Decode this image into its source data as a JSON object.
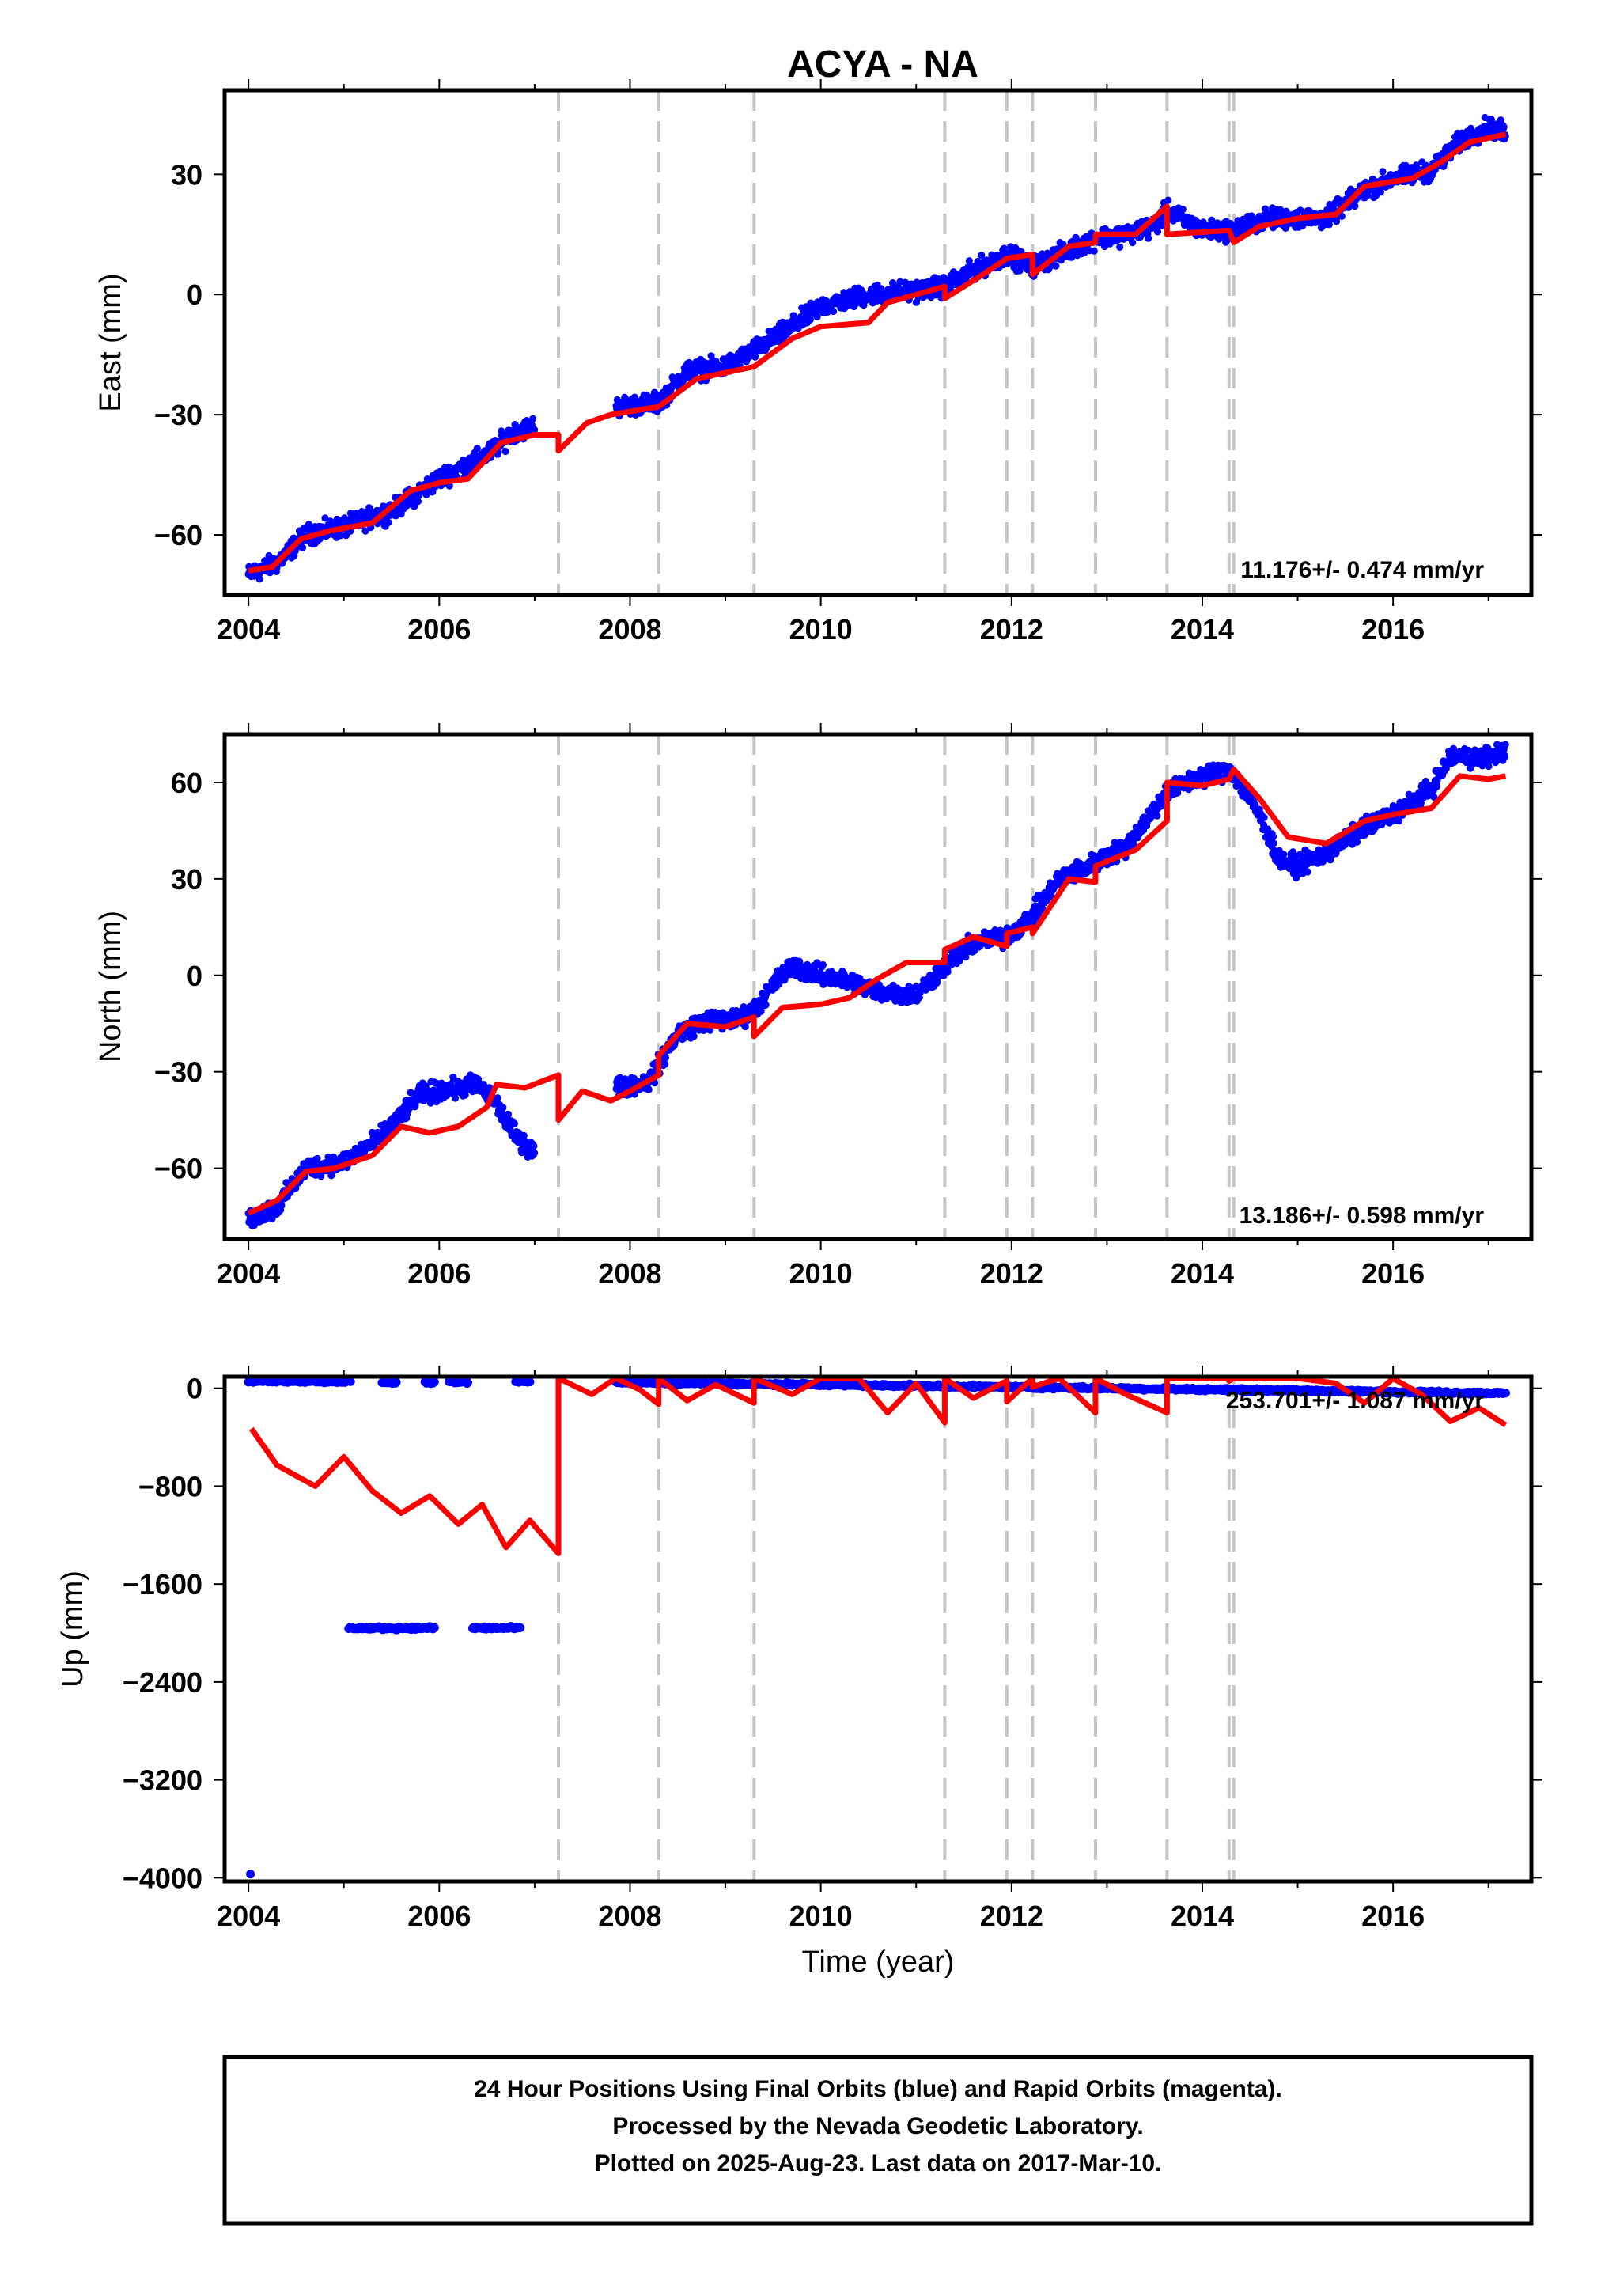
{
  "title": "ACYA - NA",
  "colors": {
    "observations": "#0000ff",
    "model": "#ff0000",
    "event_lines": "#c6c6c6",
    "frame": "#000000"
  },
  "xlabel": "Time (year)",
  "x_ticks": [
    2004,
    2006,
    2008,
    2010,
    2012,
    2014,
    2016
  ],
  "caption_lines": [
    "24 Hour Positions Using Final Orbits (blue) and Rapid Orbits (magenta).",
    "Processed by the Nevada Geodetic Laboratory.",
    "Plotted on 2025-Aug-23. Last data on 2017-Mar-10."
  ],
  "chart_data": [
    {
      "type": "scatter",
      "component": "East",
      "ylabel": "East (mm)",
      "rate_text": "11.176+/- 0.474 mm/yr",
      "xlim": [
        2003.75,
        2017.45
      ],
      "ylim": [
        -75,
        51
      ],
      "y_ticks": [
        30,
        0,
        -30,
        -60
      ],
      "event_lines": [
        2007.25,
        2008.3,
        2009.3,
        2011.3,
        2011.95,
        2012.22,
        2012.88,
        2013.63,
        2014.28,
        2014.33
      ],
      "series": [
        {
          "role": "observations",
          "gaps": [
            [
              2007.0,
              2007.85
            ]
          ],
          "x": [
            2004.0,
            2004.3,
            2004.6,
            2005.0,
            2005.5,
            2006.0,
            2006.5,
            2006.8,
            2007.0,
            2007.85,
            2008.3,
            2008.6,
            2009.0,
            2009.3,
            2009.7,
            2010.0,
            2010.5,
            2011.0,
            2011.3,
            2011.6,
            2011.95,
            2012.22,
            2012.6,
            2012.88,
            2013.2,
            2013.5,
            2013.63,
            2014.0,
            2014.3,
            2014.7,
            2015.0,
            2015.3,
            2015.7,
            2016.0,
            2016.4,
            2016.7,
            2017.0,
            2017.18
          ],
          "y": [
            -70,
            -67,
            -60,
            -58,
            -54,
            -46,
            -40,
            -34,
            -33,
            -28,
            -27,
            -19,
            -18,
            -14,
            -8,
            -3,
            0,
            1,
            2,
            6,
            10,
            7,
            11,
            14,
            15,
            17,
            21,
            16,
            16,
            19,
            19,
            19,
            26,
            29,
            31,
            38,
            42,
            40
          ]
        },
        {
          "role": "model",
          "x": [
            2004.0,
            2004.25,
            2004.55,
            2004.85,
            2005.3,
            2005.7,
            2006.0,
            2006.3,
            2006.65,
            2007.0,
            2007.25,
            2007.25,
            2007.55,
            2007.8,
            2008.3,
            2008.3,
            2008.7,
            2009.3,
            2009.3,
            2009.7,
            2010.0,
            2010.5,
            2010.7,
            2011.3,
            2011.3,
            2011.7,
            2011.95,
            2011.95,
            2012.22,
            2012.22,
            2012.6,
            2012.88,
            2012.88,
            2013.3,
            2013.63,
            2013.63,
            2014.28,
            2014.28,
            2014.33,
            2014.6,
            2015.0,
            2015.4,
            2015.7,
            2016.2,
            2016.5,
            2016.8,
            2017.18
          ],
          "y": [
            -69,
            -68,
            -61,
            -59,
            -57,
            -49,
            -47,
            -46,
            -37,
            -35,
            -35,
            -39,
            -32,
            -30,
            -28,
            -28,
            -21,
            -18,
            -18,
            -11,
            -8,
            -7,
            -2,
            2,
            -1,
            5,
            9,
            9,
            10,
            5,
            12,
            13,
            15,
            15,
            22,
            15,
            16,
            16,
            13,
            17,
            19,
            20,
            27,
            29,
            33,
            38,
            40
          ]
        }
      ]
    },
    {
      "type": "scatter",
      "component": "North",
      "ylabel": "North (mm)",
      "rate_text": "13.186+/- 0.598 mm/yr",
      "xlim": [
        2003.75,
        2017.45
      ],
      "ylim": [
        -82,
        75
      ],
      "y_ticks": [
        60,
        30,
        0,
        -30,
        -60
      ],
      "event_lines": [
        2007.25,
        2008.3,
        2009.3,
        2011.3,
        2011.95,
        2012.22,
        2012.88,
        2013.63,
        2014.28,
        2014.33
      ],
      "series": [
        {
          "role": "observations",
          "gaps": [
            [
              2007.0,
              2007.85
            ]
          ],
          "x": [
            2004.0,
            2004.3,
            2004.6,
            2005.0,
            2005.4,
            2005.8,
            2006.0,
            2006.4,
            2006.6,
            2006.8,
            2007.0,
            2007.85,
            2008.2,
            2008.5,
            2008.8,
            2009.1,
            2009.3,
            2009.5,
            2009.7,
            2010.0,
            2010.3,
            2010.6,
            2011.0,
            2011.3,
            2011.6,
            2011.95,
            2012.2,
            2012.5,
            2012.88,
            2013.2,
            2013.63,
            2014.0,
            2014.3,
            2014.6,
            2014.8,
            2015.0,
            2015.3,
            2015.7,
            2016.0,
            2016.4,
            2016.6,
            2017.0,
            2017.18
          ],
          "y": [
            -76,
            -72,
            -60,
            -58,
            -50,
            -37,
            -36,
            -34,
            -40,
            -50,
            -55,
            -35,
            -33,
            -18,
            -14,
            -14,
            -11,
            -3,
            3,
            0,
            -2,
            -5,
            -6,
            3,
            10,
            12,
            18,
            30,
            35,
            40,
            57,
            62,
            64,
            50,
            36,
            34,
            38,
            46,
            50,
            58,
            68,
            68,
            70
          ]
        },
        {
          "role": "model",
          "x": [
            2004.0,
            2004.3,
            2004.6,
            2004.9,
            2005.3,
            2005.6,
            2005.9,
            2006.2,
            2006.5,
            2006.6,
            2006.9,
            2007.25,
            2007.25,
            2007.5,
            2007.8,
            2008.0,
            2008.3,
            2008.3,
            2008.6,
            2009.0,
            2009.3,
            2009.3,
            2009.6,
            2010.0,
            2010.3,
            2010.6,
            2010.9,
            2011.3,
            2011.3,
            2011.6,
            2011.95,
            2011.95,
            2012.22,
            2012.22,
            2012.6,
            2012.88,
            2012.88,
            2013.3,
            2013.63,
            2013.63,
            2014.0,
            2014.28,
            2014.28,
            2014.33,
            2014.6,
            2014.9,
            2015.3,
            2015.7,
            2016.0,
            2016.4,
            2016.7,
            2017.0,
            2017.18
          ],
          "y": [
            -74,
            -70,
            -61,
            -60,
            -56,
            -47,
            -49,
            -47,
            -41,
            -34,
            -35,
            -31,
            -45,
            -36,
            -39,
            -36,
            -31,
            -25,
            -15,
            -16,
            -13,
            -19,
            -10,
            -9,
            -7,
            -1,
            4,
            4,
            8,
            12,
            9,
            13,
            15,
            13,
            30,
            29,
            34,
            39,
            48,
            60,
            59,
            61,
            61,
            64,
            55,
            43,
            41,
            48,
            50,
            52,
            62,
            61,
            62
          ]
        }
      ]
    },
    {
      "type": "scatter",
      "component": "Up",
      "ylabel": "Up (mm)",
      "rate_text": "253.701+/- 1.087 mm/yr",
      "xlim": [
        2003.75,
        2017.45
      ],
      "ylim": [
        -4030,
        95
      ],
      "y_ticks": [
        0,
        -800,
        -1600,
        -2400,
        -3200,
        -4000
      ],
      "event_lines": [
        2007.25,
        2008.3,
        2009.3,
        2011.3,
        2011.95,
        2012.22,
        2012.88,
        2013.63,
        2014.28,
        2014.33
      ],
      "series": [
        {
          "role": "observations",
          "segments": [
            {
              "x": [
                2004.0,
                2005.07
              ],
              "y": [
                60,
                55
              ]
            },
            {
              "x": [
                2005.4,
                2005.55
              ],
              "y": [
                50,
                50
              ]
            },
            {
              "x": [
                2005.85,
                2005.95
              ],
              "y": [
                50,
                50
              ]
            },
            {
              "x": [
                2006.1,
                2006.3
              ],
              "y": [
                50,
                50
              ]
            },
            {
              "x": [
                2006.8,
                2006.95
              ],
              "y": [
                55,
                55
              ]
            },
            {
              "x": [
                2007.85,
                2017.18
              ],
              "y": [
                50,
                -40
              ]
            },
            {
              "x": [
                2005.05,
                2005.95
              ],
              "y": [
                -1960,
                -1960
              ]
            },
            {
              "x": [
                2006.35,
                2006.85
              ],
              "y": [
                -1960,
                -1960
              ]
            }
          ],
          "outliers": [
            {
              "x": 2004.02,
              "y": -3970
            }
          ]
        },
        {
          "role": "model",
          "x": [
            2004.03,
            2004.3,
            2004.7,
            2005.0,
            2005.3,
            2005.6,
            2005.9,
            2006.2,
            2006.45,
            2006.7,
            2006.95,
            2007.25,
            2007.25,
            2007.6,
            2007.85,
            2008.1,
            2008.3,
            2008.3,
            2008.6,
            2008.9,
            2009.3,
            2009.3,
            2009.7,
            2010.0,
            2010.4,
            2010.7,
            2011.0,
            2011.3,
            2011.3,
            2011.6,
            2011.95,
            2011.95,
            2012.22,
            2012.22,
            2012.5,
            2012.88,
            2012.88,
            2013.2,
            2013.63,
            2013.63,
            2014.0,
            2014.28,
            2014.28,
            2014.33,
            2014.7,
            2015.0,
            2015.4,
            2015.7,
            2016.0,
            2016.3,
            2016.6,
            2016.9,
            2017.18
          ],
          "y": [
            -330,
            -630,
            -800,
            -560,
            -840,
            -1020,
            -880,
            -1110,
            -950,
            -1300,
            -1080,
            -1350,
            120,
            -50,
            130,
            -10,
            -130,
            130,
            -100,
            30,
            -120,
            130,
            -50,
            180,
            80,
            -200,
            40,
            -280,
            100,
            -80,
            60,
            -110,
            150,
            10,
            120,
            -200,
            150,
            -50,
            -200,
            200,
            150,
            180,
            60,
            180,
            220,
            200,
            40,
            -120,
            80,
            -50,
            -270,
            -160,
            -300
          ]
        }
      ]
    }
  ]
}
